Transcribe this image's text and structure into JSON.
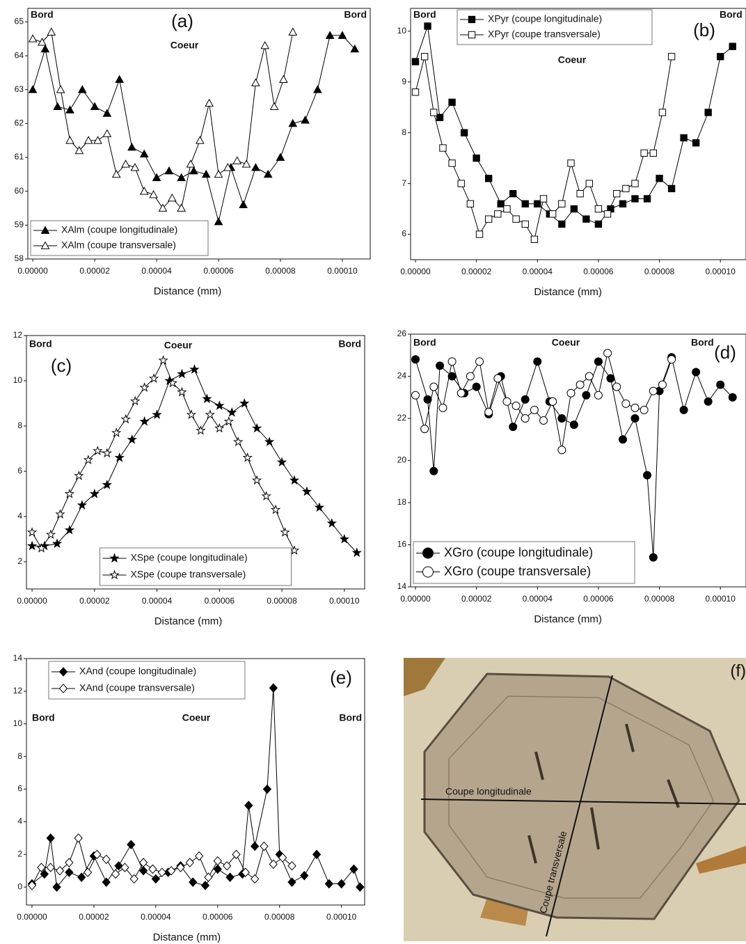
{
  "chart_data": [
    {
      "type": "line",
      "panel_label": "(a)",
      "annotations": [
        "Bord",
        "Coeur",
        "Bord"
      ],
      "x_label": "Distance (mm)",
      "legend": "lower left",
      "xlim": [
        -1.6e-06,
        0.000109
      ],
      "ylim": [
        58,
        65.4
      ],
      "xticks": [
        {
          "value": 0,
          "label": "0.00000"
        },
        {
          "value": 2e-05,
          "label": "0.00002"
        },
        {
          "value": 4e-05,
          "label": "0.00004"
        },
        {
          "value": 6e-05,
          "label": "0.00006"
        },
        {
          "value": 8e-05,
          "label": "0.00008"
        },
        {
          "value": 0.0001,
          "label": "0.00010"
        }
      ],
      "yticks": [
        58,
        59,
        60,
        61,
        62,
        63,
        64,
        65
      ],
      "series": [
        {
          "name": "XAlm (coupe longitudinale)",
          "color": "#000000",
          "marker": "triangle",
          "filled": true,
          "x": [
            0,
            4e-06,
            8e-06,
            1.2e-05,
            1.6e-05,
            2e-05,
            2.4e-05,
            2.8e-05,
            3.2e-05,
            3.6e-05,
            4e-05,
            4.4e-05,
            4.8e-05,
            5.2e-05,
            5.6e-05,
            6e-05,
            6.4e-05,
            6.8e-05,
            7.2e-05,
            7.6e-05,
            8e-05,
            8.4e-05,
            8.8e-05,
            9.2e-05,
            9.6e-05,
            0.0001,
            0.000104
          ],
          "values": [
            63.0,
            64.2,
            62.5,
            62.4,
            63.0,
            62.5,
            62.3,
            63.3,
            61.3,
            61.1,
            60.4,
            60.6,
            60.4,
            60.6,
            60.5,
            59.1,
            60.7,
            59.6,
            60.7,
            60.5,
            61.0,
            62.0,
            62.1,
            63.0,
            64.6,
            64.6,
            64.2
          ]
        },
        {
          "name": "XAlm (coupe transversale)",
          "color": "#000000",
          "marker": "triangle",
          "filled": false,
          "x": [
            0,
            3e-06,
            6e-06,
            9e-06,
            1.2e-05,
            1.5e-05,
            1.8e-05,
            2.1e-05,
            2.4e-05,
            2.7e-05,
            3e-05,
            3.3e-05,
            3.6e-05,
            3.9e-05,
            4.2e-05,
            4.5e-05,
            4.8e-05,
            5.1e-05,
            5.4e-05,
            5.7e-05,
            6e-05,
            6.3e-05,
            6.6e-05,
            6.9e-05,
            7.2e-05,
            7.5e-05,
            7.8e-05,
            8.1e-05,
            8.4e-05
          ],
          "values": [
            64.5,
            64.4,
            64.7,
            63.0,
            61.5,
            61.2,
            61.5,
            61.5,
            61.7,
            60.5,
            60.8,
            60.7,
            60.0,
            59.9,
            59.5,
            59.8,
            59.5,
            60.8,
            61.5,
            62.6,
            60.5,
            60.7,
            60.9,
            60.8,
            63.2,
            64.3,
            62.5,
            63.3,
            64.7
          ]
        }
      ]
    },
    {
      "type": "line",
      "panel_label": "(b)",
      "annotations": [
        "Bord",
        "Coeur",
        "Bord"
      ],
      "x_label": "Distance (mm)",
      "legend": "upper center",
      "xlim": [
        -1.6e-06,
        0.0001084
      ],
      "ylim": [
        5.5,
        10.45
      ],
      "xticks": [
        {
          "value": 0,
          "label": "0.00000"
        },
        {
          "value": 2e-05,
          "label": "0.00002"
        },
        {
          "value": 4e-05,
          "label": "0.00004"
        },
        {
          "value": 6e-05,
          "label": "0.00006"
        },
        {
          "value": 8e-05,
          "label": "0.00008"
        },
        {
          "value": 0.0001,
          "label": "0.00010"
        }
      ],
      "yticks": [
        6,
        7,
        8,
        9,
        10
      ],
      "series": [
        {
          "name": "XPyr (coupe longitudinale)",
          "color": "#000000",
          "marker": "square",
          "filled": true,
          "x": [
            0,
            4e-06,
            8e-06,
            1.2e-05,
            1.6e-05,
            2e-05,
            2.4e-05,
            2.8e-05,
            3.2e-05,
            3.6e-05,
            4e-05,
            4.4e-05,
            4.8e-05,
            5.2e-05,
            5.6e-05,
            6e-05,
            6.4e-05,
            6.8e-05,
            7.2e-05,
            7.6e-05,
            8e-05,
            8.4e-05,
            8.8e-05,
            9.2e-05,
            9.6e-05,
            0.0001,
            0.000104
          ],
          "values": [
            9.4,
            10.1,
            8.3,
            8.6,
            8.0,
            7.5,
            7.1,
            6.6,
            6.8,
            6.6,
            6.6,
            6.4,
            6.2,
            6.5,
            6.3,
            6.2,
            6.5,
            6.6,
            6.7,
            6.7,
            7.1,
            6.9,
            7.9,
            7.8,
            8.4,
            9.5,
            9.7
          ]
        },
        {
          "name": "XPyr (coupe transversale)",
          "color": "#000000",
          "marker": "square",
          "filled": false,
          "x": [
            0,
            3e-06,
            6e-06,
            9e-06,
            1.2e-05,
            1.5e-05,
            1.8e-05,
            2.1e-05,
            2.4e-05,
            2.7e-05,
            3e-05,
            3.3e-05,
            3.6e-05,
            3.9e-05,
            4.2e-05,
            4.5e-05,
            4.8e-05,
            5.1e-05,
            5.4e-05,
            5.7e-05,
            6e-05,
            6.3e-05,
            6.6e-05,
            6.9e-05,
            7.2e-05,
            7.5e-05,
            7.8e-05,
            8.1e-05,
            8.4e-05
          ],
          "values": [
            8.8,
            9.5,
            8.4,
            7.7,
            7.4,
            7.0,
            6.6,
            6.0,
            6.3,
            6.4,
            6.5,
            6.3,
            6.2,
            5.9,
            6.7,
            6.4,
            6.6,
            7.4,
            6.8,
            7.0,
            6.5,
            6.4,
            6.8,
            6.9,
            7.0,
            7.6,
            7.6,
            8.4,
            9.5
          ]
        }
      ]
    },
    {
      "type": "line",
      "panel_label": "(c)",
      "annotations": [
        "Bord",
        "Coeur",
        "Bord"
      ],
      "x_label": "Distance (mm)",
      "legend": "lower center",
      "xlim": [
        -1.8e-06,
        0.0001065
      ],
      "ylim": [
        0.8,
        12
      ],
      "xticks": [
        {
          "value": 0,
          "label": "0.00000"
        },
        {
          "value": 2e-05,
          "label": "0.00002"
        },
        {
          "value": 4e-05,
          "label": "0.00004"
        },
        {
          "value": 6e-05,
          "label": "0.00006"
        },
        {
          "value": 8e-05,
          "label": "0.00008"
        },
        {
          "value": 0.0001,
          "label": "0.00010"
        }
      ],
      "yticks": [
        2,
        4,
        6,
        8,
        10,
        12
      ],
      "series": [
        {
          "name": "XSpe (coupe longitudinale)",
          "color": "#000000",
          "marker": "star",
          "filled": true,
          "x": [
            0,
            4e-06,
            8e-06,
            1.2e-05,
            1.6e-05,
            2e-05,
            2.4e-05,
            2.8e-05,
            3.2e-05,
            3.6e-05,
            4e-05,
            4.4e-05,
            4.8e-05,
            5.2e-05,
            5.6e-05,
            6e-05,
            6.4e-05,
            6.8e-05,
            7.2e-05,
            7.6e-05,
            8e-05,
            8.4e-05,
            8.8e-05,
            9.2e-05,
            9.6e-05,
            0.0001,
            0.000104
          ],
          "values": [
            2.7,
            2.7,
            2.8,
            3.4,
            4.5,
            5.0,
            5.4,
            6.6,
            7.4,
            8.2,
            8.5,
            10.0,
            10.3,
            10.5,
            9.2,
            8.9,
            8.6,
            9.0,
            7.9,
            7.3,
            6.4,
            5.6,
            5.1,
            4.4,
            3.7,
            3.0,
            2.4
          ]
        },
        {
          "name": "XSpe (coupe transversale)",
          "color": "#000000",
          "marker": "star",
          "filled": false,
          "x": [
            0,
            3e-06,
            6e-06,
            9e-06,
            1.2e-05,
            1.5e-05,
            1.8e-05,
            2.1e-05,
            2.4e-05,
            2.7e-05,
            3e-05,
            3.3e-05,
            3.6e-05,
            3.9e-05,
            4.2e-05,
            4.5e-05,
            4.8e-05,
            5.1e-05,
            5.4e-05,
            5.7e-05,
            6e-05,
            6.3e-05,
            6.6e-05,
            6.9e-05,
            7.2e-05,
            7.5e-05,
            7.8e-05,
            8.1e-05,
            8.4e-05
          ],
          "values": [
            3.3,
            2.6,
            3.2,
            4.1,
            5.0,
            5.8,
            6.5,
            6.9,
            6.8,
            7.7,
            8.3,
            9.1,
            9.7,
            10.1,
            10.9,
            9.9,
            9.5,
            8.5,
            7.8,
            8.5,
            7.9,
            8.2,
            7.3,
            6.6,
            5.6,
            4.9,
            4.3,
            3.3,
            2.5
          ]
        }
      ]
    },
    {
      "type": "line",
      "panel_label": "(d)",
      "annotations": [
        "Bord",
        "Coeur",
        "Bord"
      ],
      "x_label": "Distance (mm)",
      "legend": "lower left",
      "xlim": [
        -1.6e-06,
        0.0001084
      ],
      "ylim": [
        14,
        26
      ],
      "xticks": [
        {
          "value": 0,
          "label": "0.00000"
        },
        {
          "value": 2e-05,
          "label": "0.00002"
        },
        {
          "value": 4e-05,
          "label": "0.00004"
        },
        {
          "value": 6e-05,
          "label": "0.00006"
        },
        {
          "value": 8e-05,
          "label": "0.00008"
        },
        {
          "value": 0.0001,
          "label": "0.00010"
        }
      ],
      "yticks": [
        14,
        16,
        18,
        20,
        22,
        24,
        26
      ],
      "series": [
        {
          "name": "XGro (coupe longitudinale)",
          "color": "#000000",
          "marker": "circle",
          "filled": true,
          "x": [
            0,
            4e-06,
            6e-06,
            8e-06,
            1.2e-05,
            1.6e-05,
            2e-05,
            2.4e-05,
            2.8e-05,
            3.2e-05,
            3.6e-05,
            4e-05,
            4.4e-05,
            4.8e-05,
            5.2e-05,
            5.6e-05,
            6e-05,
            6.4e-05,
            6.8e-05,
            7.2e-05,
            7.6e-05,
            7.8e-05,
            8e-05,
            8.4e-05,
            8.8e-05,
            9.2e-05,
            9.6e-05,
            0.0001,
            0.000104
          ],
          "values": [
            24.8,
            22.9,
            19.5,
            24.5,
            24.0,
            23.2,
            23.5,
            22.2,
            24.0,
            21.6,
            22.9,
            24.7,
            22.8,
            22.0,
            21.7,
            23.1,
            24.7,
            23.9,
            21.0,
            22.0,
            19.3,
            15.4,
            23.3,
            24.9,
            22.4,
            24.2,
            22.8,
            23.6,
            23.0
          ]
        },
        {
          "name": "XGro (coupe transversale)",
          "color": "#000000",
          "marker": "circle",
          "filled": false,
          "x": [
            0,
            3e-06,
            6e-06,
            9e-06,
            1.2e-05,
            1.5e-05,
            1.8e-05,
            2.1e-05,
            2.4e-05,
            2.7e-05,
            3e-05,
            3.3e-05,
            3.6e-05,
            3.9e-05,
            4.2e-05,
            4.5e-05,
            4.8e-05,
            5.1e-05,
            5.4e-05,
            5.7e-05,
            6e-05,
            6.3e-05,
            6.6e-05,
            6.9e-05,
            7.2e-05,
            7.5e-05,
            7.8e-05,
            8.1e-05,
            8.4e-05
          ],
          "values": [
            23.1,
            21.5,
            23.5,
            22.5,
            24.7,
            23.2,
            24.0,
            24.7,
            22.3,
            23.9,
            22.8,
            22.6,
            22.0,
            22.4,
            21.9,
            22.8,
            20.5,
            23.2,
            23.6,
            24.0,
            23.1,
            25.1,
            23.5,
            22.7,
            22.5,
            22.4,
            23.3,
            23.6,
            24.8
          ]
        }
      ]
    },
    {
      "type": "line",
      "panel_label": "(e)",
      "annotations": [
        "Bord",
        "Coeur",
        "Bord"
      ],
      "x_label": "Distance (mm)",
      "legend": "upper left",
      "xlim": [
        -1.8e-06,
        0.0001075
      ],
      "ylim": [
        -1.1,
        14
      ],
      "xticks": [
        {
          "value": 0,
          "label": "0.00000"
        },
        {
          "value": 2e-05,
          "label": "0.00002"
        },
        {
          "value": 4e-05,
          "label": "0.00004"
        },
        {
          "value": 6e-05,
          "label": "0.00006"
        },
        {
          "value": 8e-05,
          "label": "0.00008"
        },
        {
          "value": 0.0001,
          "label": "0.00010"
        }
      ],
      "yticks": [
        0,
        2,
        4,
        6,
        8,
        10,
        12,
        14
      ],
      "series": [
        {
          "name": "XAnd (coupe longitudinale)",
          "color": "#000000",
          "marker": "diamond",
          "filled": true,
          "x": [
            0,
            4e-06,
            6e-06,
            8e-06,
            1.2e-05,
            1.6e-05,
            2e-05,
            2.4e-05,
            2.8e-05,
            3.2e-05,
            3.6e-05,
            4e-05,
            4.4e-05,
            4.8e-05,
            5.2e-05,
            5.6e-05,
            6e-05,
            6.4e-05,
            6.8e-05,
            7e-05,
            7.2e-05,
            7.6e-05,
            7.8e-05,
            8e-05,
            8.4e-05,
            8.8e-05,
            9.2e-05,
            9.6e-05,
            0.0001,
            0.000104,
            0.000106
          ],
          "values": [
            0.2,
            0.8,
            3.0,
            0,
            0.9,
            0.6,
            1.9,
            0.3,
            1.3,
            2.6,
            1.0,
            0.5,
            0.9,
            1.3,
            0.3,
            0.1,
            1.1,
            0.6,
            0.8,
            5.0,
            2.5,
            6.0,
            12.2,
            2.0,
            0.3,
            0.7,
            2.0,
            0.2,
            0.2,
            1.1,
            0
          ]
        },
        {
          "name": "XAnd (coupe transversale)",
          "color": "#000000",
          "marker": "diamond",
          "filled": false,
          "x": [
            0,
            3e-06,
            6e-06,
            9e-06,
            1.2e-05,
            1.5e-05,
            1.8e-05,
            2.1e-05,
            2.4e-05,
            2.7e-05,
            3e-05,
            3.3e-05,
            3.6e-05,
            3.9e-05,
            4.2e-05,
            4.5e-05,
            4.8e-05,
            5.1e-05,
            5.4e-05,
            5.7e-05,
            6e-05,
            6.3e-05,
            6.6e-05,
            6.9e-05,
            7.2e-05,
            7.5e-05,
            7.8e-05,
            8.1e-05,
            8.4e-05
          ],
          "values": [
            0.1,
            1.2,
            1.2,
            1.0,
            1.5,
            3.0,
            0.9,
            2.0,
            1.7,
            0.8,
            1.2,
            0.5,
            1.5,
            1.1,
            0.9,
            1.0,
            1.2,
            1.5,
            1.9,
            0.6,
            1.6,
            1.3,
            2.0,
            0.9,
            0.5,
            2.5,
            1.4,
            1.8,
            1.3
          ]
        }
      ]
    }
  ],
  "photo": {
    "panel_label": "(f)",
    "annotations": [
      "Coupe longitudinale",
      "Coupe transversale"
    ]
  }
}
